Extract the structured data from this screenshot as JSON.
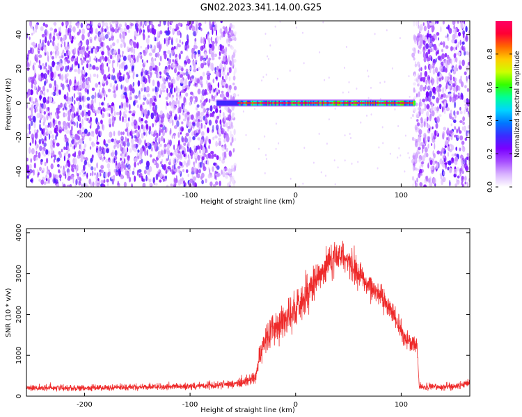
{
  "figure_title": "GN02.2023.341.14.00.G25",
  "colors": {
    "snr_line": "#ee2a2a",
    "axis": "#000000",
    "colormap": [
      "#ffffff",
      "#d9b3ff",
      "#a64dff",
      "#7a00ff",
      "#3b2bff",
      "#0077ff",
      "#00d4ff",
      "#00ff99",
      "#33ff00",
      "#ccff00",
      "#ffcc00",
      "#ff6600",
      "#ff0033",
      "#ff0066"
    ]
  },
  "chart_data": [
    {
      "type": "heatmap",
      "title": "",
      "xlabel": "Height of straight line (km)",
      "ylabel": "Frequency (Hz)",
      "xlim": [
        -255,
        165
      ],
      "ylim": [
        -49,
        48
      ],
      "xticks": [
        -200,
        -100,
        0,
        100
      ],
      "xtick_labels": [
        "-200",
        "-100",
        "0",
        "100"
      ],
      "yticks": [
        -40,
        -20,
        0,
        20,
        40
      ],
      "ytick_labels": [
        "-40",
        "-20",
        "0",
        "20",
        "40"
      ],
      "colorbar": {
        "label": "Normalized spectral amplitude",
        "range": [
          0,
          1
        ],
        "ticks": [
          0.0,
          0.2,
          0.4,
          0.6,
          0.8
        ],
        "tick_labels": [
          "0.0",
          "0.2",
          "0.4",
          "0.6",
          "0.8"
        ]
      },
      "features": {
        "noise_regions_km": [
          [
            -255,
            -57
          ],
          [
            111,
            165
          ]
        ],
        "quiet_region_km": [
          -57,
          111
        ],
        "signal_line": {
          "frequency_hz": 0,
          "x_start_km": -75,
          "x_end_km": 113,
          "peak_amplitude": 1.0,
          "typical_amplitude": 0.85
        },
        "noise_amplitude_range": [
          0.05,
          0.3
        ]
      }
    },
    {
      "type": "line",
      "title": "",
      "xlabel": "Height of straight line (km)",
      "ylabel": "SNR (10 * v/v)",
      "xlim": [
        -255,
        165
      ],
      "ylim": [
        0,
        4100
      ],
      "xticks": [
        -200,
        -100,
        0,
        100
      ],
      "xtick_labels": [
        "-200",
        "-100",
        "0",
        "100"
      ],
      "yticks": [
        0,
        1000,
        2000,
        3000,
        4000
      ],
      "ytick_labels": [
        "0",
        "1000",
        "2000",
        "3000",
        "4000"
      ],
      "series": [
        {
          "x": [
            -255,
            -200,
            -150,
            -100,
            -60,
            -45,
            -38,
            -35,
            -30,
            -20,
            -10,
            0,
            10,
            20,
            30,
            40,
            50,
            60,
            70,
            80,
            90,
            100,
            105,
            110,
            115,
            117,
            120,
            140,
            150,
            160,
            165
          ],
          "y": [
            200,
            200,
            220,
            240,
            300,
            350,
            500,
            900,
            1300,
            1700,
            1900,
            2100,
            2500,
            2900,
            3250,
            3500,
            3300,
            2950,
            2700,
            2500,
            2150,
            1600,
            1400,
            1300,
            1250,
            250,
            220,
            230,
            250,
            280,
            300
          ],
          "noise_amplitude": [
            110,
            110,
            110,
            120,
            150,
            200,
            350,
            450,
            550,
            600,
            650,
            650,
            650,
            600,
            600,
            550,
            550,
            500,
            500,
            450,
            450,
            400,
            350,
            300,
            250,
            140,
            130,
            130,
            140,
            150,
            160
          ]
        }
      ]
    }
  ]
}
